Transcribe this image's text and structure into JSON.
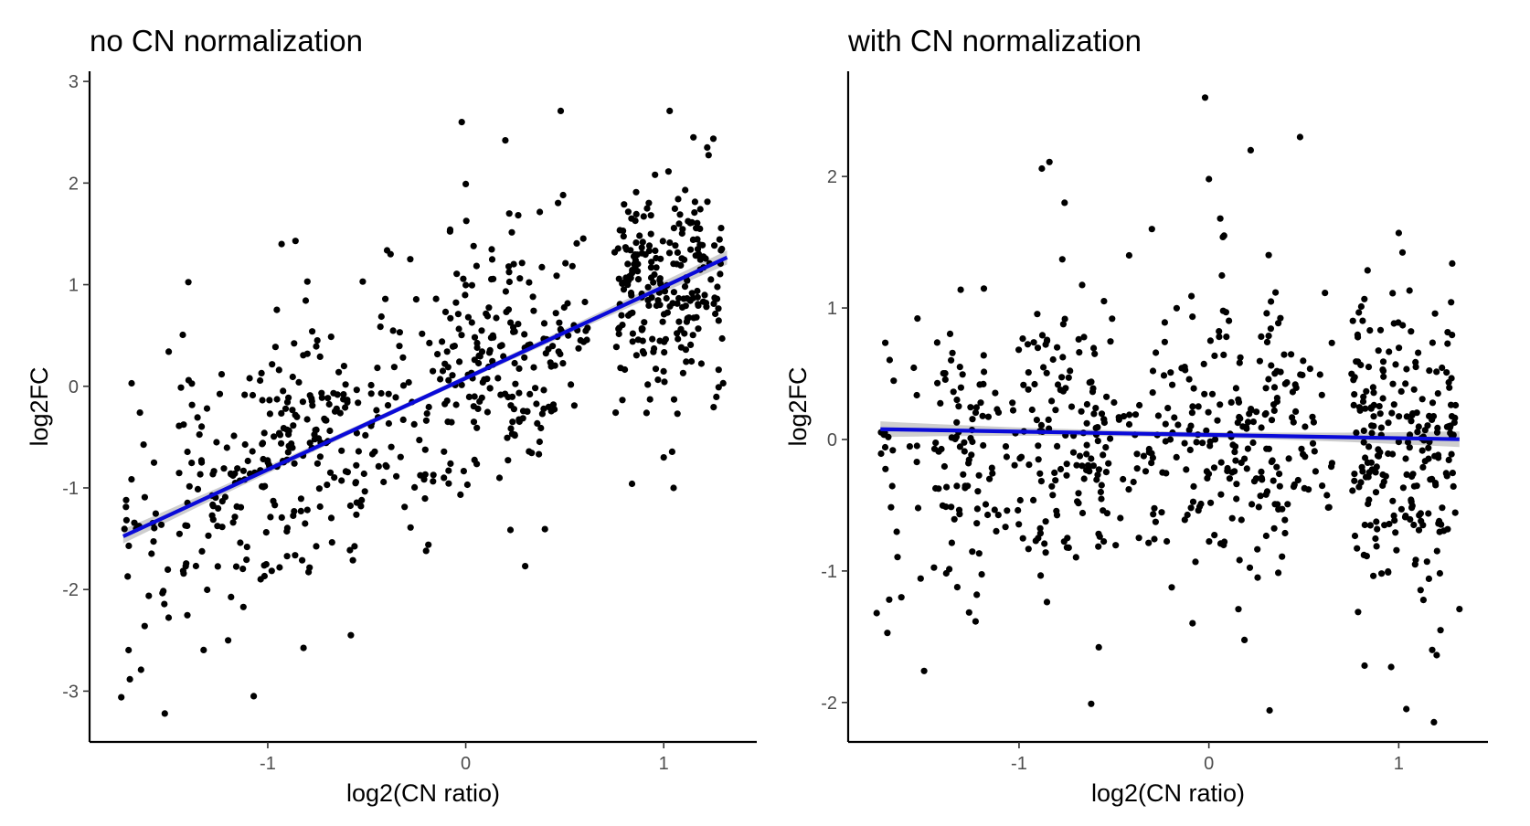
{
  "chart_data": [
    {
      "type": "scatter",
      "title": "no CN normalization",
      "xlabel": "log2(CN ratio)",
      "ylabel": "log2FC",
      "xlim": [
        -1.9,
        1.47
      ],
      "ylim": [
        -3.5,
        3.1
      ],
      "xticks": [
        -1,
        0,
        1
      ],
      "yticks": [
        -3,
        -2,
        -1,
        0,
        1,
        2,
        3
      ],
      "grid": false,
      "legend": "none",
      "point_color": "#000000",
      "fit_color": "#0a0ad8",
      "band_color": "#bdbdbd",
      "fit": {
        "slope": 0.9,
        "intercept": 0.08,
        "x_range": [
          -1.73,
          1.32
        ],
        "se_edge": 0.07
      },
      "clusters": [
        {
          "x": [
            -1.73,
            -1.5
          ],
          "y_mean": -1.25,
          "y_sd": 0.65,
          "n": 30
        },
        {
          "x": [
            -1.45,
            -1.0
          ],
          "y_mean": -0.95,
          "y_sd": 0.6,
          "n": 100
        },
        {
          "x": [
            -1.0,
            -0.55
          ],
          "y_mean": -0.55,
          "y_sd": 0.6,
          "n": 130
        },
        {
          "x": [
            -0.55,
            -0.1
          ],
          "y_mean": -0.3,
          "y_sd": 0.55,
          "n": 70
        },
        {
          "x": [
            -0.1,
            0.45
          ],
          "y_mean": 0.25,
          "y_sd": 0.6,
          "n": 160
        },
        {
          "x": [
            0.45,
            0.65
          ],
          "y_mean": 0.6,
          "y_sd": 0.5,
          "n": 30
        },
        {
          "x": [
            0.75,
            1.3
          ],
          "y_mean": 0.95,
          "y_sd": 0.55,
          "n": 230
        }
      ],
      "outliers": [
        [
          -1.74,
          -3.06
        ],
        [
          -1.52,
          -3.22
        ],
        [
          -1.64,
          -2.79
        ],
        [
          -1.5,
          0.34
        ],
        [
          -1.2,
          -2.5
        ],
        [
          -0.93,
          1.4
        ],
        [
          -0.86,
          1.43
        ],
        [
          -0.8,
          1.03
        ],
        [
          -0.58,
          -2.45
        ],
        [
          -0.52,
          1.03
        ],
        [
          -0.38,
          1.3
        ],
        [
          -0.28,
          1.25
        ],
        [
          -0.2,
          -1.62
        ],
        [
          -0.15,
          0.86
        ],
        [
          -0.02,
          2.6
        ],
        [
          0.0,
          1.99
        ],
        [
          0.2,
          2.42
        ],
        [
          0.3,
          -1.77
        ],
        [
          0.48,
          2.71
        ],
        [
          0.04,
          1.38
        ],
        [
          0.22,
          1.7
        ],
        [
          1.03,
          2.71
        ],
        [
          1.22,
          2.35
        ],
        [
          0.84,
          -0.96
        ],
        [
          1.05,
          -1.0
        ],
        [
          1.0,
          -0.7
        ],
        [
          1.3,
          0.03
        ],
        [
          1.15,
          2.45
        ]
      ]
    },
    {
      "type": "scatter",
      "title": "with CN normalization",
      "xlabel": "log2(CN ratio)",
      "ylabel": "log2FC",
      "xlim": [
        -1.9,
        1.47
      ],
      "ylim": [
        -2.3,
        2.8
      ],
      "xticks": [
        -1,
        0,
        1
      ],
      "yticks": [
        -2,
        -1,
        0,
        1,
        2
      ],
      "grid": false,
      "legend": "none",
      "point_color": "#000000",
      "fit_color": "#0a0ad8",
      "band_color": "#bdbdbd",
      "fit": {
        "slope": -0.025,
        "intercept": 0.035,
        "x_range": [
          -1.73,
          1.32
        ],
        "se_edge": 0.06
      },
      "clusters": [
        {
          "x": [
            -1.73,
            -1.5
          ],
          "y_mean": 0.0,
          "y_sd": 0.55,
          "n": 25
        },
        {
          "x": [
            -1.45,
            -1.0
          ],
          "y_mean": 0.0,
          "y_sd": 0.5,
          "n": 100
        },
        {
          "x": [
            -1.0,
            -0.55
          ],
          "y_mean": 0.05,
          "y_sd": 0.55,
          "n": 130
        },
        {
          "x": [
            -0.55,
            -0.1
          ],
          "y_mean": 0.0,
          "y_sd": 0.5,
          "n": 70
        },
        {
          "x": [
            -0.1,
            0.45
          ],
          "y_mean": 0.05,
          "y_sd": 0.55,
          "n": 160
        },
        {
          "x": [
            0.45,
            0.65
          ],
          "y_mean": 0.0,
          "y_sd": 0.45,
          "n": 30
        },
        {
          "x": [
            0.75,
            1.3
          ],
          "y_mean": 0.0,
          "y_sd": 0.55,
          "n": 230
        }
      ],
      "outliers": [
        [
          -1.75,
          -1.32
        ],
        [
          -1.5,
          -1.76
        ],
        [
          -1.62,
          -1.2
        ],
        [
          -0.88,
          2.06
        ],
        [
          -0.84,
          2.11
        ],
        [
          -0.76,
          1.8
        ],
        [
          -0.62,
          -2.01
        ],
        [
          -0.58,
          -1.58
        ],
        [
          -0.42,
          1.4
        ],
        [
          -0.3,
          1.6
        ],
        [
          -0.02,
          2.6
        ],
        [
          0.0,
          1.98
        ],
        [
          0.22,
          2.2
        ],
        [
          0.32,
          -2.06
        ],
        [
          0.48,
          2.3
        ],
        [
          0.06,
          1.68
        ],
        [
          1.0,
          1.57
        ],
        [
          1.04,
          -2.05
        ],
        [
          0.82,
          -1.72
        ],
        [
          0.96,
          -1.73
        ],
        [
          1.32,
          -1.29
        ],
        [
          1.2,
          -1.64
        ],
        [
          1.22,
          -1.45
        ],
        [
          0.08,
          1.55
        ]
      ]
    }
  ]
}
